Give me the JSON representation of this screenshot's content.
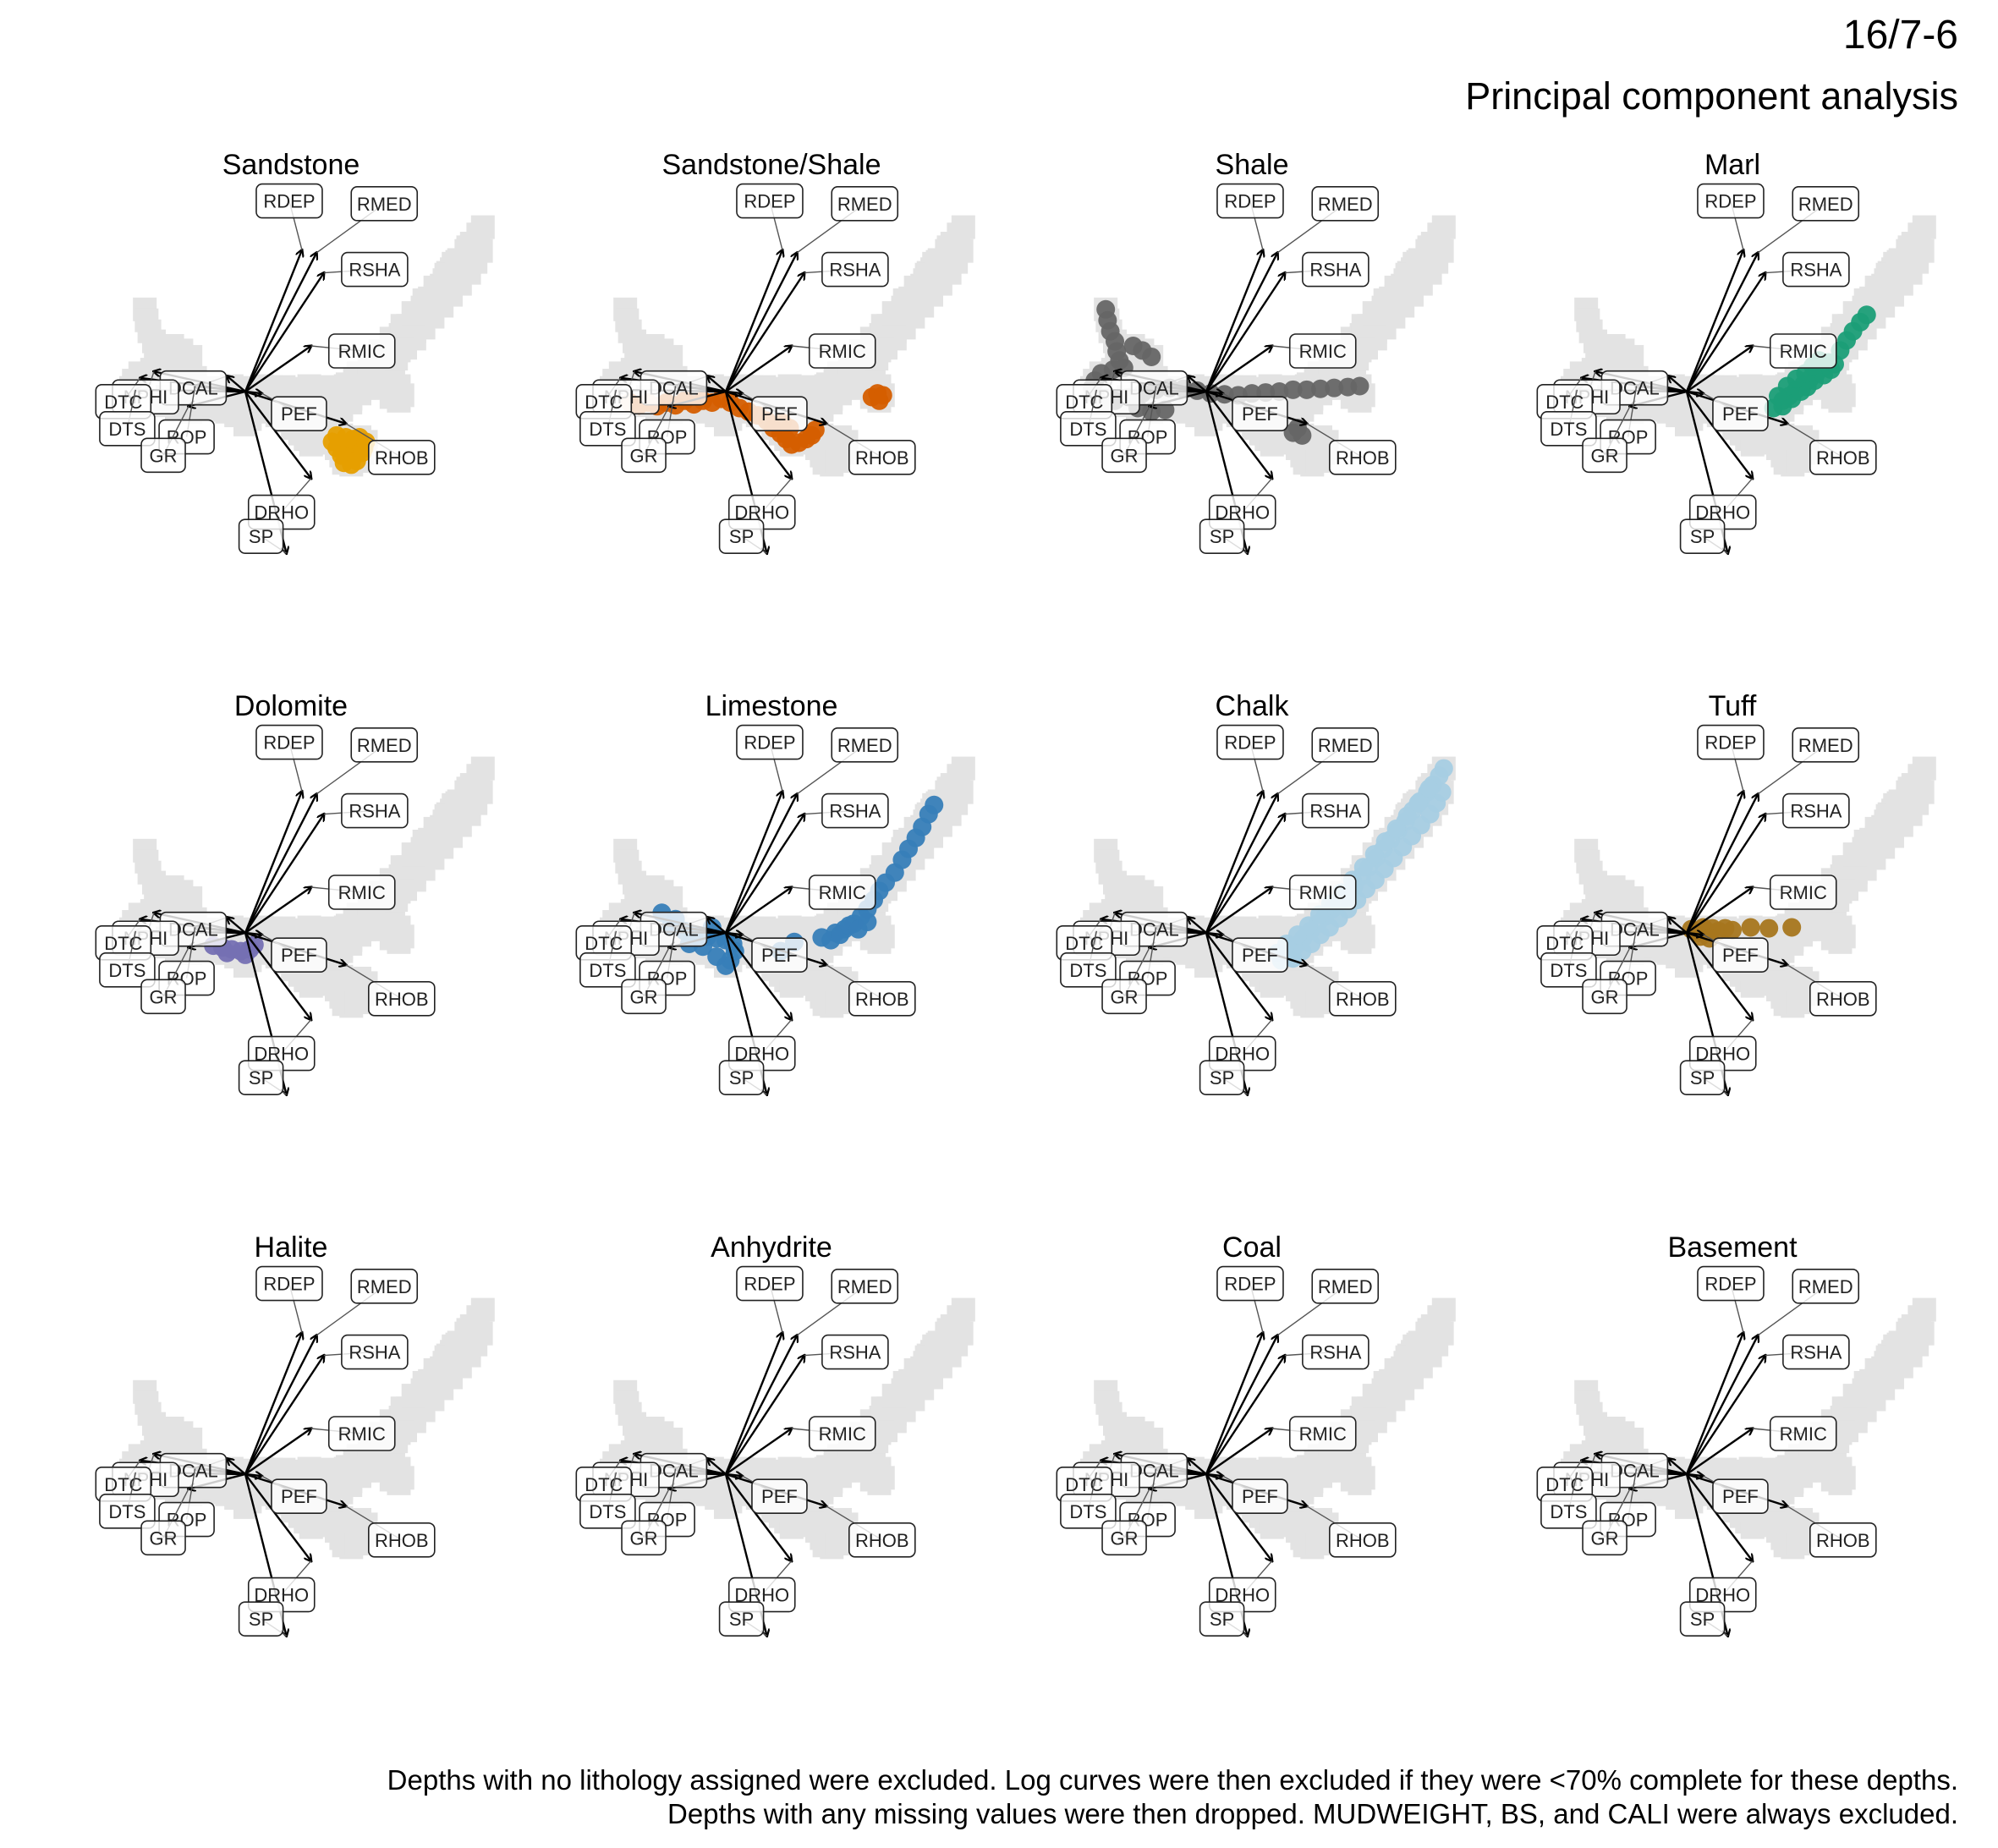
{
  "header": {
    "well": "16/7-6",
    "subtitle": "Principal component analysis"
  },
  "caption": {
    "line1": "Depths with no lithology assigned were excluded. Log curves were then excluded if they were <70% complete for these depths.",
    "line2": "Depths with any missing values were then dropped. MUDWEIGHT, BS, and CALI were always excluded."
  },
  "chart_data": {
    "type": "scatter",
    "subtype": "PCA biplot, small multiples by lithology",
    "background_points": "all depths shown in light grey (#e3e3e3) in every panel",
    "grid": false,
    "axes_visible": false,
    "loadings": [
      {
        "name": "RDEP",
        "x": 0.62,
        "y": 1.55
      },
      {
        "name": "RMED",
        "x": 0.78,
        "y": 1.52
      },
      {
        "name": "RSHA",
        "x": 0.86,
        "y": 1.3
      },
      {
        "name": "RMIC",
        "x": 0.72,
        "y": 0.5
      },
      {
        "name": "DCAL",
        "x": -0.2,
        "y": 0.17
      },
      {
        "name": "NPHI",
        "x": -1.0,
        "y": 0.22
      },
      {
        "name": "DTC",
        "x": -1.15,
        "y": 0.15
      },
      {
        "name": "DTS",
        "x": -1.2,
        "y": 0.02
      },
      {
        "name": "ROP",
        "x": -0.55,
        "y": 0.06
      },
      {
        "name": "GR",
        "x": -0.62,
        "y": -0.16
      },
      {
        "name": "PEF",
        "x": 0.18,
        "y": -0.02
      },
      {
        "name": "RHOB",
        "x": 1.1,
        "y": -0.35
      },
      {
        "name": "DRHO",
        "x": 0.72,
        "y": -0.95
      },
      {
        "name": "SP",
        "x": 0.45,
        "y": -1.77
      }
    ],
    "panels": [
      {
        "name": "Sandstone",
        "color": "#E69F00",
        "points": [
          [
            0.95,
            -0.55
          ],
          [
            1.0,
            -0.62
          ],
          [
            1.05,
            -0.58
          ],
          [
            1.1,
            -0.66
          ],
          [
            1.15,
            -0.6
          ],
          [
            1.2,
            -0.62
          ],
          [
            1.25,
            -0.57
          ],
          [
            1.3,
            -0.62
          ],
          [
            1.05,
            -0.7
          ],
          [
            1.12,
            -0.72
          ],
          [
            1.2,
            -0.7
          ],
          [
            1.28,
            -0.67
          ],
          [
            1.0,
            -0.48
          ],
          [
            1.1,
            -0.5
          ],
          [
            1.18,
            -0.52
          ],
          [
            1.25,
            -0.5
          ],
          [
            1.32,
            -0.55
          ],
          [
            1.08,
            -0.78
          ],
          [
            1.16,
            -0.8
          ],
          [
            1.22,
            -0.76
          ]
        ]
      },
      {
        "name": "Sandstone/Shale",
        "color": "#D55E00",
        "points": [
          [
            -1.05,
            -0.12
          ],
          [
            -0.95,
            -0.15
          ],
          [
            -0.85,
            -0.12
          ],
          [
            -0.75,
            -0.16
          ],
          [
            -0.65,
            -0.12
          ],
          [
            -0.55,
            -0.15
          ],
          [
            -0.45,
            -0.1
          ],
          [
            -0.35,
            -0.14
          ],
          [
            -0.25,
            -0.1
          ],
          [
            -0.15,
            -0.12
          ],
          [
            -0.05,
            -0.08
          ],
          [
            0.05,
            -0.12
          ],
          [
            0.15,
            -0.18
          ],
          [
            0.25,
            -0.22
          ],
          [
            0.35,
            -0.26
          ],
          [
            0.45,
            -0.32
          ],
          [
            0.52,
            -0.4
          ],
          [
            0.6,
            -0.46
          ],
          [
            0.66,
            -0.52
          ],
          [
            0.72,
            -0.58
          ],
          [
            0.8,
            -0.56
          ],
          [
            0.88,
            -0.52
          ],
          [
            0.94,
            -0.48
          ],
          [
            0.98,
            -0.42
          ],
          [
            1.6,
            -0.06
          ],
          [
            1.66,
            -0.02
          ],
          [
            1.72,
            -0.04
          ],
          [
            1.68,
            -0.1
          ],
          [
            0.62,
            -0.34
          ],
          [
            0.7,
            -0.4
          ]
        ]
      },
      {
        "name": "Shale",
        "color": "#666666",
        "points": [
          [
            -1.1,
            0.9
          ],
          [
            -1.08,
            0.78
          ],
          [
            -1.05,
            0.66
          ],
          [
            -1.0,
            0.55
          ],
          [
            -0.98,
            0.44
          ],
          [
            -0.95,
            0.34
          ],
          [
            -0.9,
            0.26
          ],
          [
            -1.02,
            0.24
          ],
          [
            -1.15,
            0.2
          ],
          [
            -1.22,
            0.12
          ],
          [
            -1.25,
            0.04
          ],
          [
            -1.2,
            -0.06
          ],
          [
            -1.12,
            -0.14
          ],
          [
            -1.0,
            -0.1
          ],
          [
            -0.85,
            -0.06
          ],
          [
            -0.7,
            -0.02
          ],
          [
            -0.55,
            0.02
          ],
          [
            -0.4,
            0.04
          ],
          [
            -0.25,
            0.03
          ],
          [
            -0.1,
            0.01
          ],
          [
            0.05,
            -0.02
          ],
          [
            0.2,
            -0.03
          ],
          [
            0.35,
            -0.04
          ],
          [
            0.5,
            -0.02
          ],
          [
            0.65,
            -0.01
          ],
          [
            0.8,
            0.0
          ],
          [
            0.95,
            0.02
          ],
          [
            1.1,
            0.02
          ],
          [
            1.25,
            0.03
          ],
          [
            1.4,
            0.04
          ],
          [
            1.55,
            0.05
          ],
          [
            1.68,
            0.06
          ],
          [
            -0.75,
            -0.18
          ],
          [
            -0.6,
            -0.22
          ],
          [
            -0.45,
            -0.2
          ],
          [
            0.95,
            -0.45
          ],
          [
            1.05,
            -0.48
          ],
          [
            1.0,
            -0.4
          ],
          [
            -0.8,
            0.5
          ],
          [
            -0.7,
            0.45
          ],
          [
            -0.6,
            0.38
          ]
        ]
      },
      {
        "name": "Marl",
        "color": "#1B9E77",
        "points": [
          [
            0.95,
            -0.18
          ],
          [
            1.05,
            -0.1
          ],
          [
            1.12,
            -0.05
          ],
          [
            1.2,
            0.02
          ],
          [
            1.28,
            0.08
          ],
          [
            1.35,
            0.14
          ],
          [
            1.42,
            0.2
          ],
          [
            1.48,
            0.26
          ],
          [
            1.55,
            0.32
          ],
          [
            1.05,
            -0.16
          ],
          [
            1.15,
            -0.08
          ],
          [
            1.25,
            0.0
          ],
          [
            1.32,
            0.05
          ],
          [
            1.4,
            0.12
          ],
          [
            1.5,
            0.18
          ],
          [
            1.58,
            0.24
          ],
          [
            1.62,
            0.3
          ],
          [
            1.68,
            0.45
          ],
          [
            1.75,
            0.56
          ],
          [
            1.82,
            0.66
          ],
          [
            1.9,
            0.76
          ],
          [
            1.97,
            0.84
          ],
          [
            1.1,
            0.06
          ],
          [
            1.2,
            0.14
          ],
          [
            1.3,
            0.2
          ],
          [
            1.0,
            -0.05
          ],
          [
            1.38,
            0.28
          ],
          [
            1.45,
            0.34
          ]
        ]
      },
      {
        "name": "Dolomite",
        "color": "#7570B3",
        "points": [
          [
            -0.35,
            -0.14
          ],
          [
            -0.25,
            -0.16
          ],
          [
            -0.15,
            -0.18
          ],
          [
            -0.05,
            -0.2
          ],
          [
            0.05,
            -0.18
          ],
          [
            0.1,
            -0.13
          ],
          [
            -0.2,
            -0.22
          ],
          [
            0.0,
            -0.24
          ]
        ]
      },
      {
        "name": "Limestone",
        "color": "#377EB8",
        "points": [
          [
            -0.7,
            0.22
          ],
          [
            -0.55,
            0.15
          ],
          [
            -0.6,
            0.08
          ],
          [
            -0.45,
            0.02
          ],
          [
            -0.35,
            -0.02
          ],
          [
            -0.2,
            -0.04
          ],
          [
            -0.1,
            -0.06
          ],
          [
            0.0,
            -0.08
          ],
          [
            0.08,
            -0.12
          ],
          [
            0.1,
            -0.2
          ],
          [
            0.05,
            -0.3
          ],
          [
            0.0,
            -0.36
          ],
          [
            -0.1,
            -0.26
          ],
          [
            -0.25,
            -0.15
          ],
          [
            -0.4,
            -0.12
          ],
          [
            -0.15,
            0.06
          ],
          [
            1.05,
            -0.05
          ],
          [
            1.2,
            0.0
          ],
          [
            1.3,
            0.04
          ],
          [
            1.4,
            0.1
          ],
          [
            1.48,
            0.18
          ],
          [
            1.55,
            0.26
          ],
          [
            1.62,
            0.36
          ],
          [
            1.68,
            0.46
          ],
          [
            1.75,
            0.55
          ],
          [
            1.85,
            0.66
          ],
          [
            1.93,
            0.8
          ],
          [
            2.0,
            0.92
          ],
          [
            2.08,
            1.04
          ],
          [
            2.15,
            1.16
          ],
          [
            2.22,
            1.3
          ],
          [
            2.28,
            1.4
          ],
          [
            1.15,
            -0.08
          ],
          [
            1.25,
            -0.02
          ],
          [
            1.35,
            0.08
          ],
          [
            1.45,
            0.04
          ],
          [
            1.55,
            0.12
          ],
          [
            0.6,
            -0.2
          ],
          [
            0.75,
            -0.1
          ]
        ]
      },
      {
        "name": "Chalk",
        "color": "#A6CEE3",
        "points": [
          [
            0.82,
            -0.3
          ],
          [
            0.9,
            -0.22
          ],
          [
            0.98,
            -0.14
          ],
          [
            1.06,
            -0.06
          ],
          [
            1.14,
            0.02
          ],
          [
            1.22,
            0.1
          ],
          [
            1.3,
            0.18
          ],
          [
            1.38,
            0.26
          ],
          [
            1.46,
            0.34
          ],
          [
            1.54,
            0.42
          ],
          [
            1.62,
            0.52
          ],
          [
            1.7,
            0.62
          ],
          [
            1.78,
            0.72
          ],
          [
            1.86,
            0.82
          ],
          [
            1.94,
            0.92
          ],
          [
            2.02,
            1.02
          ],
          [
            2.1,
            1.12
          ],
          [
            2.18,
            1.22
          ],
          [
            2.26,
            1.34
          ],
          [
            2.34,
            1.44
          ],
          [
            2.42,
            1.54
          ],
          [
            2.48,
            1.62
          ],
          [
            2.55,
            1.72
          ],
          [
            2.6,
            1.8
          ],
          [
            0.95,
            -0.28
          ],
          [
            1.05,
            -0.2
          ],
          [
            1.15,
            -0.12
          ],
          [
            1.25,
            -0.02
          ],
          [
            1.35,
            0.06
          ],
          [
            1.45,
            0.16
          ],
          [
            1.55,
            0.26
          ],
          [
            1.65,
            0.36
          ],
          [
            1.75,
            0.48
          ],
          [
            1.85,
            0.58
          ],
          [
            1.95,
            0.7
          ],
          [
            2.05,
            0.82
          ],
          [
            2.15,
            0.94
          ],
          [
            2.25,
            1.06
          ],
          [
            2.35,
            1.18
          ],
          [
            2.45,
            1.3
          ],
          [
            2.52,
            1.42
          ],
          [
            2.58,
            1.54
          ],
          [
            0.78,
            -0.22
          ],
          [
            0.88,
            -0.12
          ],
          [
            1.0,
            -0.02
          ],
          [
            1.12,
            0.08
          ],
          [
            1.24,
            0.2
          ],
          [
            1.36,
            0.32
          ],
          [
            1.48,
            0.44
          ],
          [
            1.6,
            0.58
          ],
          [
            1.72,
            0.72
          ],
          [
            1.84,
            0.86
          ],
          [
            1.96,
            1.0
          ],
          [
            2.08,
            1.14
          ],
          [
            2.2,
            1.28
          ],
          [
            2.32,
            1.42
          ],
          [
            2.44,
            1.58
          ]
        ]
      },
      {
        "name": "Tuff",
        "color": "#A6761D",
        "points": [
          [
            0.05,
            0.04
          ],
          [
            0.12,
            0.0
          ],
          [
            0.18,
            0.06
          ],
          [
            0.22,
            0.02
          ],
          [
            0.28,
            0.05
          ],
          [
            0.35,
            0.02
          ],
          [
            0.42,
            0.05
          ],
          [
            0.5,
            0.03
          ],
          [
            0.15,
            -0.04
          ],
          [
            0.25,
            -0.06
          ],
          [
            0.7,
            0.06
          ],
          [
            0.9,
            0.05
          ],
          [
            1.15,
            0.06
          ]
        ]
      },
      {
        "name": "Halite",
        "color": "#999999",
        "points": []
      },
      {
        "name": "Anhydrite",
        "color": "#999999",
        "points": []
      },
      {
        "name": "Coal",
        "color": "#999999",
        "points": []
      },
      {
        "name": "Basement",
        "color": "#999999",
        "points": []
      }
    ]
  }
}
